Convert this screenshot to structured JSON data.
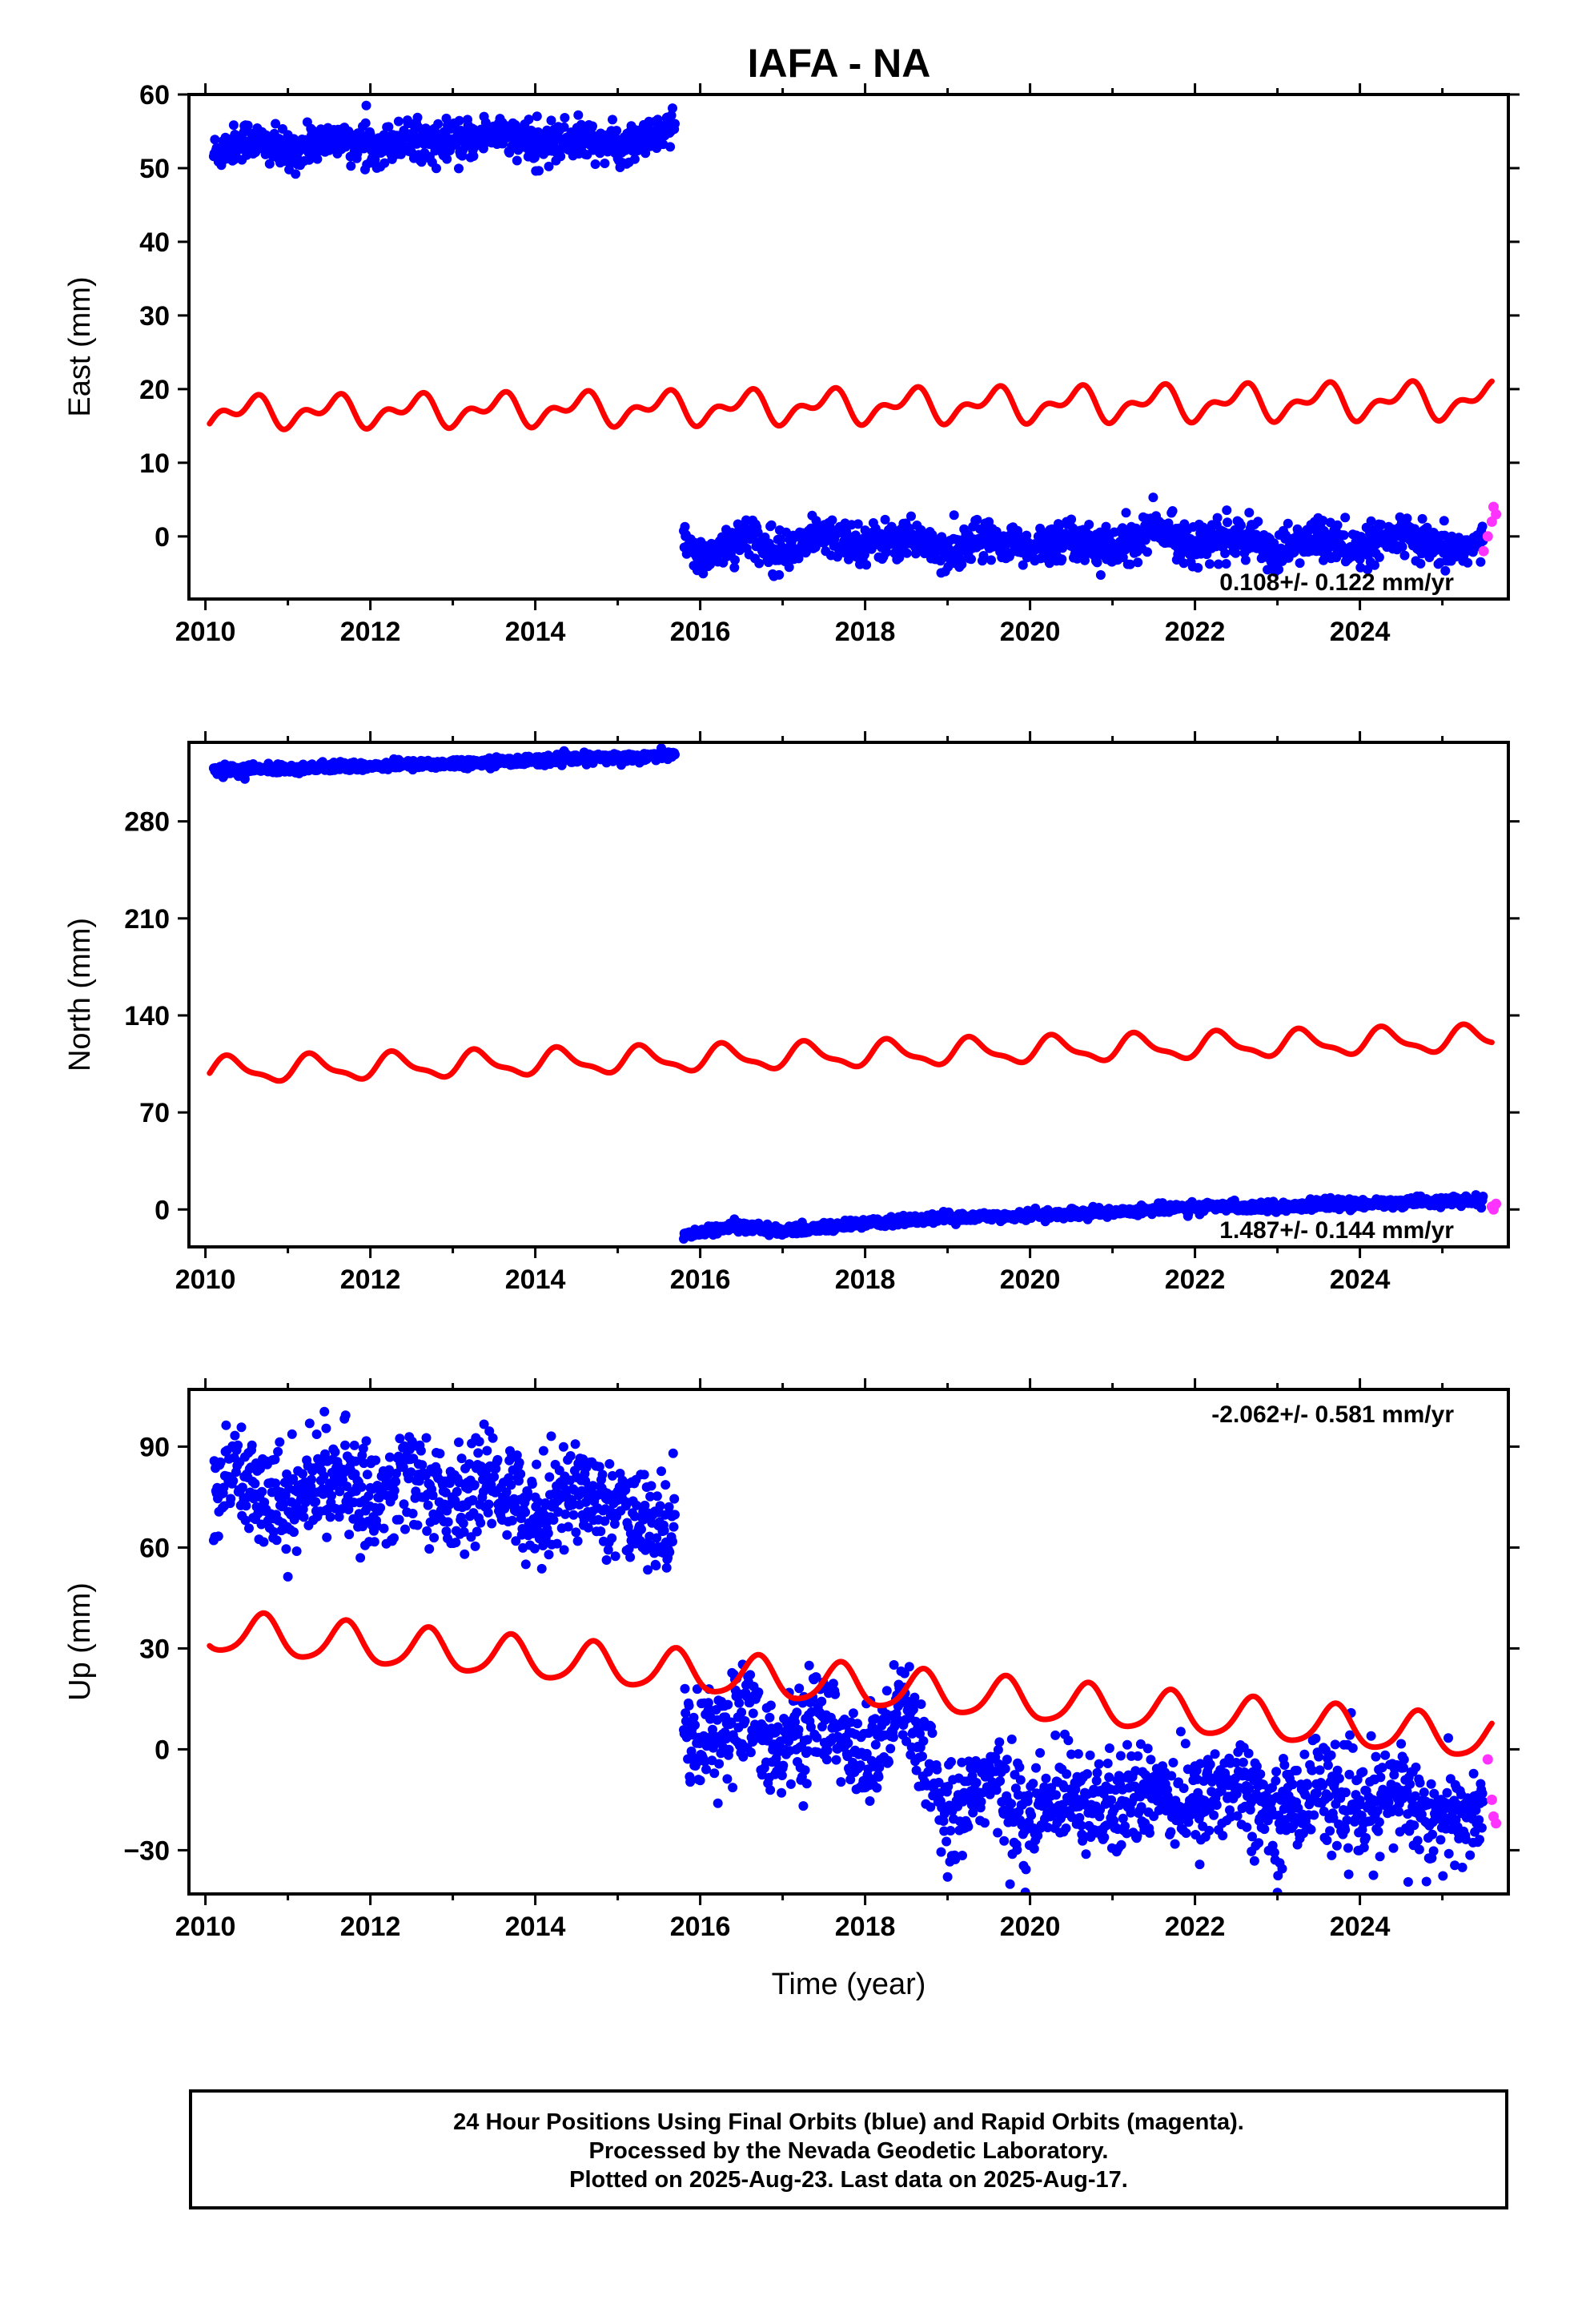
{
  "title": "IAFA - NA",
  "xlabel": "Time (year)",
  "colors": {
    "final": "#0000ff",
    "rapid": "#ff33ff",
    "model": "#ff0000",
    "frame": "#000000"
  },
  "footer": {
    "line1": "24 Hour Positions Using Final Orbits (blue) and Rapid Orbits (magenta).",
    "line2": "Processed by the Nevada Geodetic Laboratory.",
    "line3": "Plotted on 2025-Aug-23. Last data on 2025-Aug-17."
  },
  "chart_data": [
    {
      "type": "scatter",
      "component": "east",
      "ylabel": "East (mm)",
      "xlim": [
        2009.8,
        2025.8
      ],
      "ylim": [
        -8.5,
        60
      ],
      "xticks": [
        2010,
        2012,
        2014,
        2016,
        2018,
        2020,
        2022,
        2024
      ],
      "yticks": [
        0,
        10,
        20,
        30,
        40,
        50,
        60
      ],
      "rate_label": "0.108+/- 0.122 mm/yr",
      "series": [
        {
          "kind": "final",
          "segments": [
            {
              "x": [
                2010.1,
                2010.5,
                2011.0,
                2011.5,
                2012.0,
                2012.5,
                2013.0,
                2013.5,
                2014.0,
                2014.5,
                2015.0,
                2015.5,
                2015.7
              ],
              "y": [
                52,
                54,
                52,
                54,
                53,
                54,
                53,
                55,
                53,
                54,
                53,
                54,
                56
              ]
            },
            {
              "x": [
                2015.8,
                2016.0,
                2016.5,
                2017.0,
                2017.5,
                2018.0,
                2018.5,
                2019.0,
                2019.5,
                2020.0,
                2020.5,
                2021.0,
                2021.5,
                2022.0,
                2022.5,
                2023.0,
                2023.5,
                2024.0,
                2024.5,
                2025.0,
                2025.5
              ],
              "y": [
                -1,
                -3,
                0,
                -2,
                0,
                -1,
                0,
                -2,
                0,
                -2,
                0,
                -2,
                1,
                -1,
                0,
                -2,
                0,
                -2,
                0,
                -2,
                -1
              ]
            }
          ]
        },
        {
          "kind": "rapid",
          "x": [
            2025.5,
            2025.55,
            2025.6,
            2025.62,
            2025.65
          ],
          "y": [
            -2,
            0,
            2,
            4,
            3
          ]
        },
        {
          "kind": "model",
          "start": 2010.05,
          "end": 2025.6,
          "base": 16.8,
          "base_ref": 2010.0,
          "rate": 0.108,
          "offsets": [],
          "annual_amp": 1.5,
          "annual_phase": 0.3,
          "semi_amp": 1.2,
          "semi_phase": 0.05,
          "growth": 0.02
        }
      ]
    },
    {
      "type": "scatter",
      "component": "north",
      "ylabel": "North (mm)",
      "xlim": [
        2009.8,
        2025.8
      ],
      "ylim": [
        -27,
        337
      ],
      "xticks": [
        2010,
        2012,
        2014,
        2016,
        2018,
        2020,
        2022,
        2024
      ],
      "yticks": [
        0,
        70,
        140,
        210,
        280
      ],
      "rate_label": "1.487+/- 0.144 mm/yr",
      "series": [
        {
          "kind": "final",
          "segments": [
            {
              "x": [
                2010.1,
                2011.0,
                2012.0,
                2013.0,
                2014.0,
                2015.0,
                2015.7
              ],
              "y": [
                317,
                318,
                320,
                322,
                324,
                326,
                328
              ]
            },
            {
              "x": [
                2015.8,
                2016.5,
                2017.0,
                2018.0,
                2019.0,
                2020.0,
                2021.0,
                2022.0,
                2023.0,
                2024.0,
                2025.0,
                2025.5
              ],
              "y": [
                -18,
                -12,
                -16,
                -10,
                -6,
                -4,
                -2,
                2,
                2,
                4,
                6,
                6
              ]
            }
          ]
        },
        {
          "kind": "rapid",
          "x": [
            2025.6,
            2025.62,
            2025.65
          ],
          "y": [
            2,
            0,
            4
          ]
        },
        {
          "kind": "model",
          "start": 2010.05,
          "end": 2025.6,
          "base": 100,
          "base_ref": 2010.0,
          "rate": 1.487,
          "offsets": [],
          "annual_amp": 8.5,
          "annual_phase": 0.05,
          "semi_amp": 3.0,
          "semi_phase": 0.1,
          "growth": 0.0
        }
      ]
    },
    {
      "type": "scatter",
      "component": "up",
      "ylabel": "Up (mm)",
      "xlim": [
        2009.8,
        2025.8
      ],
      "ylim": [
        -43,
        107
      ],
      "xticks": [
        2010,
        2012,
        2014,
        2016,
        2018,
        2020,
        2022,
        2024
      ],
      "yticks": [
        -30,
        0,
        30,
        60,
        90
      ],
      "rate_label": "-2.062+/- 0.581 mm/yr",
      "series": [
        {
          "kind": "final",
          "segments": [
            {
              "x": [
                2010.1,
                2010.5,
                2011.0,
                2011.5,
                2012.0,
                2012.5,
                2013.0,
                2013.5,
                2014.0,
                2014.5,
                2015.0,
                2015.5,
                2015.7
              ],
              "y": [
                75,
                82,
                72,
                82,
                74,
                82,
                72,
                80,
                70,
                78,
                70,
                66,
                72
              ]
            },
            {
              "x": [
                2015.8,
                2016.0,
                2016.5,
                2017.0,
                2017.5,
                2018.0,
                2018.5,
                2019.0,
                2019.5,
                2020.0,
                2020.5,
                2021.0,
                2021.5,
                2022.0,
                2022.5,
                2023.0,
                2023.5,
                2024.0,
                2024.5,
                2025.0,
                2025.5
              ],
              "y": [
                5,
                3,
                10,
                0,
                10,
                -5,
                12,
                -20,
                -8,
                -22,
                -10,
                -20,
                -10,
                -18,
                -8,
                -20,
                -10,
                -20,
                -12,
                -22,
                -18
              ]
            }
          ]
        },
        {
          "kind": "rapid",
          "x": [
            2025.55,
            2025.6,
            2025.62,
            2025.65
          ],
          "y": [
            -3,
            -15,
            -20,
            -22
          ]
        },
        {
          "kind": "model",
          "start": 2010.05,
          "end": 2025.6,
          "base": 35,
          "base_ref": 2010.0,
          "rate": -2.062,
          "offsets": [],
          "annual_amp": 6.0,
          "annual_phase": 0.45,
          "semi_amp": 1.0,
          "semi_phase": 0.1,
          "growth": 0.0
        }
      ]
    }
  ]
}
